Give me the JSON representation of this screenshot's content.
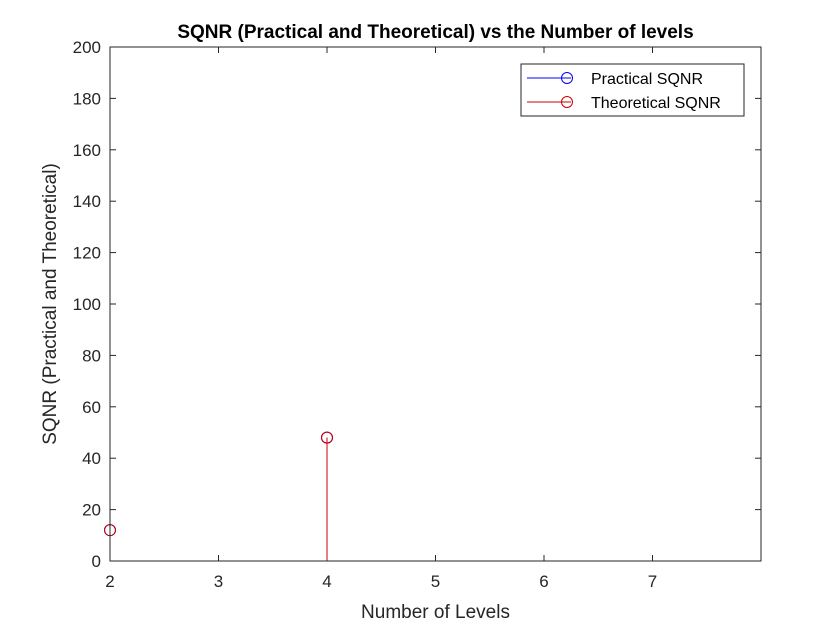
{
  "chart_data": {
    "type": "stem",
    "title": "SQNR (Practical and Theoretical) vs the Number of levels",
    "xlabel": "Number of Levels",
    "ylabel": "SQNR (Practical and Theoretical)",
    "xlim": [
      2,
      8
    ],
    "ylim": [
      0,
      200
    ],
    "xticks": [
      2,
      3,
      4,
      5,
      6,
      7
    ],
    "yticks": [
      0,
      20,
      40,
      60,
      80,
      100,
      120,
      140,
      160,
      180,
      200
    ],
    "grid": false,
    "legend_position": "top-right",
    "series": [
      {
        "name": "Practical SQNR",
        "color": "#0000ff",
        "marker": "circle",
        "x": [
          2,
          4
        ],
        "y": [
          12,
          48
        ]
      },
      {
        "name": "Theoretical SQNR",
        "color": "#cc0000",
        "marker": "circle",
        "x": [
          2,
          4
        ],
        "y": [
          12,
          48
        ]
      }
    ]
  }
}
